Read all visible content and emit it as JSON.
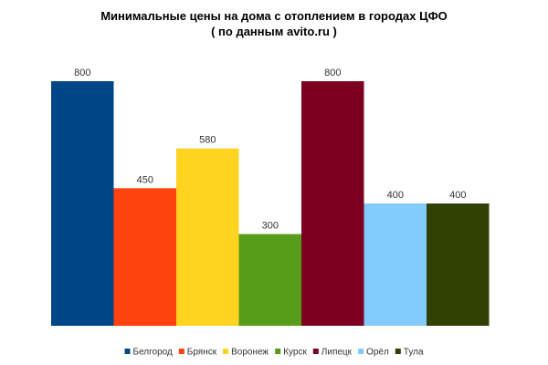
{
  "chart_data": {
    "type": "bar",
    "title": "Минимальные цены на дома с отоплением в городах ЦФО",
    "subtitle": "( по данным avito.ru  )",
    "xlabel": "",
    "ylabel": "",
    "ylim": [
      0,
      800
    ],
    "grid": false,
    "legend_position": "bottom",
    "categories": [
      "Белгород",
      "Брянск",
      "Воронеж",
      "Курск",
      "Липецк",
      "Орёл",
      "Тула"
    ],
    "values": [
      800,
      450,
      580,
      300,
      800,
      400,
      400
    ],
    "colors": [
      "#004586",
      "#ff420e",
      "#ffd320",
      "#579d1c",
      "#7e0021",
      "#83caff",
      "#314004"
    ]
  }
}
